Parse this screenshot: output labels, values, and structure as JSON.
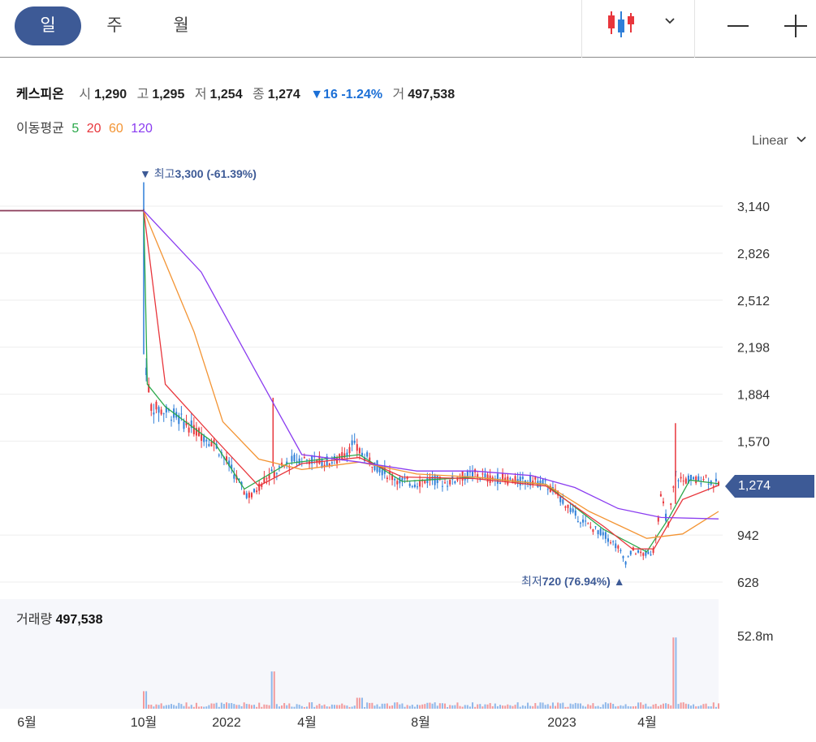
{
  "toolbar": {
    "periods": [
      "일",
      "주",
      "월"
    ],
    "active_period": "일",
    "zoom_out_icon": "minus-icon",
    "zoom_in_icon": "plus-icon",
    "chart_type_icon": "candlestick-icon"
  },
  "quote": {
    "name": "케스피온",
    "open_label": "시",
    "open": "1,290",
    "high_label": "고",
    "high": "1,295",
    "low_label": "저",
    "low": "1,254",
    "close_label": "종",
    "close": "1,274",
    "change": "▼16",
    "change_pct": "-1.24%",
    "volume_label": "거",
    "volume": "497,538"
  },
  "ma": {
    "label": "이동평균",
    "items": [
      {
        "period": "5",
        "color": "#2aa84a"
      },
      {
        "period": "20",
        "color": "#e8363c"
      },
      {
        "period": "60",
        "color": "#f39433"
      },
      {
        "period": "120",
        "color": "#8a3cf0"
      }
    ]
  },
  "scale": {
    "label": "Linear"
  },
  "current_price_label": "1,274",
  "volume_panel": {
    "label": "거래량",
    "value": "497,538"
  },
  "colors": {
    "up": "#e8363c",
    "down": "#2f7fd8",
    "accent": "#3d5a96"
  },
  "chart_data": {
    "type": "candlestick",
    "price_ticks": [
      3140,
      2826,
      2512,
      2198,
      1884,
      1570,
      1274,
      942,
      628
    ],
    "price_tick_labels": [
      "3,140",
      "2,826",
      "2,512",
      "2,198",
      "1,884",
      "1,570",
      "1,274",
      "942",
      "628"
    ],
    "volume_tick_label": "52.8m",
    "x_tick_labels": [
      "6월",
      "10월",
      "2022",
      "4월",
      "8월",
      "2023",
      "4월"
    ],
    "annotations": {
      "high": {
        "label": "최고",
        "value": "3,300",
        "pct": "(-61.39%)"
      },
      "low": {
        "label": "최저",
        "value": "720",
        "pct": "(76.94%)"
      }
    },
    "price_path": [
      [
        0,
        3110
      ],
      [
        0.2,
        3110
      ],
      [
        0.2,
        3300
      ],
      [
        0.2,
        2200
      ],
      [
        0.21,
        1800
      ],
      [
        0.24,
        1750
      ],
      [
        0.27,
        1650
      ],
      [
        0.3,
        1550
      ],
      [
        0.32,
        1400
      ],
      [
        0.34,
        1230
      ],
      [
        0.35,
        1200
      ],
      [
        0.37,
        1330
      ],
      [
        0.38,
        1350
      ],
      [
        0.41,
        1450
      ],
      [
        0.43,
        1450
      ],
      [
        0.45,
        1430
      ],
      [
        0.47,
        1440
      ],
      [
        0.49,
        1550
      ],
      [
        0.5,
        1500
      ],
      [
        0.52,
        1420
      ],
      [
        0.54,
        1350
      ],
      [
        0.56,
        1300
      ],
      [
        0.58,
        1290
      ],
      [
        0.6,
        1320
      ],
      [
        0.62,
        1290
      ],
      [
        0.64,
        1330
      ],
      [
        0.66,
        1350
      ],
      [
        0.68,
        1320
      ],
      [
        0.7,
        1320
      ],
      [
        0.72,
        1300
      ],
      [
        0.74,
        1310
      ],
      [
        0.76,
        1280
      ],
      [
        0.78,
        1190
      ],
      [
        0.8,
        1080
      ],
      [
        0.82,
        1000
      ],
      [
        0.84,
        950
      ],
      [
        0.86,
        860
      ],
      [
        0.87,
        760
      ],
      [
        0.88,
        840
      ],
      [
        0.89,
        820
      ],
      [
        0.9,
        810
      ],
      [
        0.91,
        840
      ],
      [
        0.92,
        1200
      ],
      [
        0.93,
        1000
      ],
      [
        0.94,
        1350
      ],
      [
        0.95,
        1300
      ],
      [
        0.96,
        1320
      ],
      [
        0.97,
        1300
      ],
      [
        0.98,
        1340
      ],
      [
        0.99,
        1300
      ],
      [
        1.0,
        1274
      ]
    ],
    "ma5": [
      [
        0,
        3110
      ],
      [
        0.2,
        3110
      ],
      [
        0.205,
        1950
      ],
      [
        0.23,
        1800
      ],
      [
        0.3,
        1550
      ],
      [
        0.34,
        1250
      ],
      [
        0.4,
        1420
      ],
      [
        0.5,
        1480
      ],
      [
        0.56,
        1300
      ],
      [
        0.66,
        1330
      ],
      [
        0.76,
        1280
      ],
      [
        0.84,
        980
      ],
      [
        0.9,
        830
      ],
      [
        0.93,
        1050
      ],
      [
        0.96,
        1310
      ],
      [
        1.0,
        1285
      ]
    ],
    "ma20": [
      [
        0,
        3110
      ],
      [
        0.2,
        3110
      ],
      [
        0.23,
        1950
      ],
      [
        0.3,
        1580
      ],
      [
        0.36,
        1270
      ],
      [
        0.42,
        1420
      ],
      [
        0.5,
        1460
      ],
      [
        0.56,
        1330
      ],
      [
        0.66,
        1320
      ],
      [
        0.76,
        1270
      ],
      [
        0.84,
        1000
      ],
      [
        0.88,
        850
      ],
      [
        0.91,
        850
      ],
      [
        0.95,
        1180
      ],
      [
        1.0,
        1274
      ]
    ],
    "ma60": [
      [
        0,
        3110
      ],
      [
        0.2,
        3110
      ],
      [
        0.27,
        2300
      ],
      [
        0.31,
        1700
      ],
      [
        0.36,
        1450
      ],
      [
        0.42,
        1380
      ],
      [
        0.5,
        1430
      ],
      [
        0.58,
        1350
      ],
      [
        0.66,
        1330
      ],
      [
        0.76,
        1280
      ],
      [
        0.82,
        1100
      ],
      [
        0.9,
        920
      ],
      [
        0.95,
        950
      ],
      [
        1.0,
        1100
      ]
    ],
    "ma120": [
      [
        0,
        3110
      ],
      [
        0.2,
        3110
      ],
      [
        0.28,
        2700
      ],
      [
        0.36,
        2000
      ],
      [
        0.42,
        1480
      ],
      [
        0.5,
        1430
      ],
      [
        0.58,
        1370
      ],
      [
        0.66,
        1370
      ],
      [
        0.74,
        1340
      ],
      [
        0.8,
        1260
      ],
      [
        0.86,
        1120
      ],
      [
        0.92,
        1060
      ],
      [
        1.0,
        1050
      ]
    ],
    "volume_spikes": [
      [
        0.2,
        0.16
      ],
      [
        0.38,
        0.34
      ],
      [
        0.5,
        0.1
      ],
      [
        0.94,
        0.65
      ]
    ]
  }
}
